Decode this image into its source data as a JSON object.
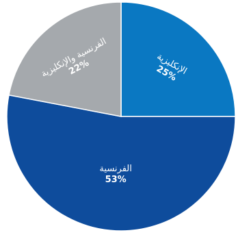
{
  "chart_data": {
    "type": "pie",
    "slices": [
      {
        "label": "الإنكليزية",
        "value": 25,
        "value_label": "25%",
        "color": "#0a78c2"
      },
      {
        "label": "الفرنسية",
        "value": 53,
        "value_label": "53%",
        "color": "#0e4c9c"
      },
      {
        "label": "الفرنسية والإنكليزية",
        "value": 22,
        "value_label": "22%",
        "color": "#a5a9ad"
      }
    ],
    "start": "12 o'clock",
    "direction": "clockwise",
    "legend": "none",
    "labels_inside": true
  }
}
